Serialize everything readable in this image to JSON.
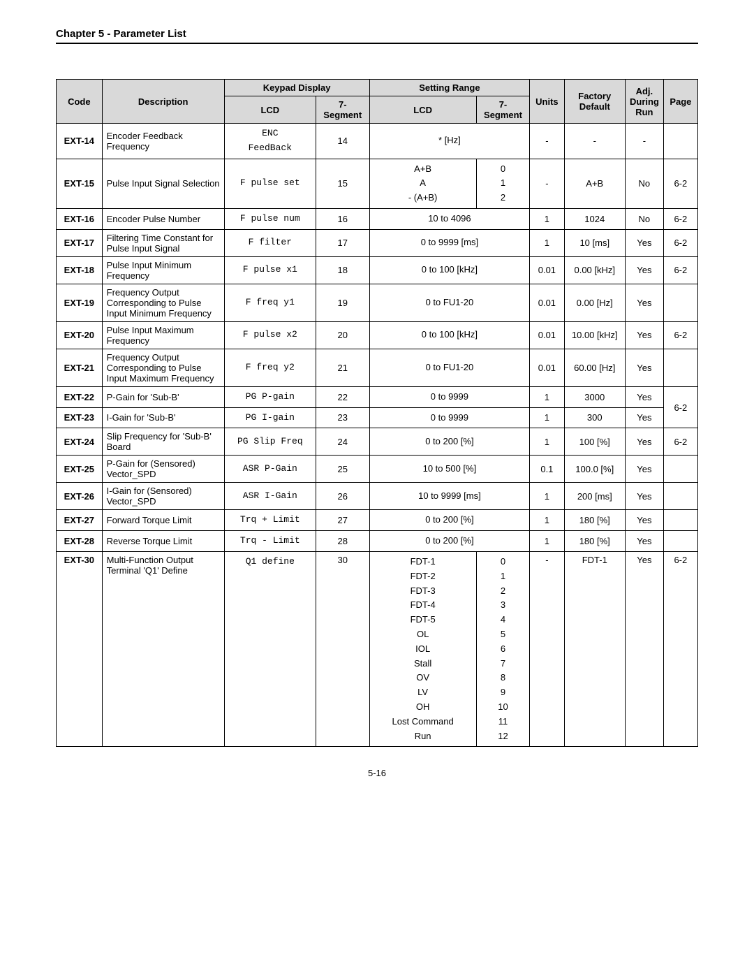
{
  "chapterTitle": "Chapter 5 - Parameter List",
  "pageNumber": "5-16",
  "headers": {
    "code": "Code",
    "description": "Description",
    "keypadDisplay": "Keypad Display",
    "lcd": "LCD",
    "seg7": "7-Segment",
    "settingRange": "Setting Range",
    "units": "Units",
    "factoryDefault": "Factory Default",
    "adjDuringRun": "Adj. During Run",
    "page": "Page"
  },
  "rows": [
    {
      "code": "EXT-14",
      "desc": "Encoder Feedback Frequency",
      "lcdLines": [
        "ENC",
        "FeedBack"
      ],
      "seg": "14",
      "setLcdLines": [
        "* [Hz]"
      ],
      "setSegLines": [],
      "setSpan": true,
      "units": "-",
      "def": "-",
      "adj": "-",
      "page": ""
    },
    {
      "code": "EXT-15",
      "desc": "Pulse Input Signal Selection",
      "lcdLines": [
        "F pulse set"
      ],
      "seg": "15",
      "setLcdLines": [
        "A+B",
        "A",
        "- (A+B)"
      ],
      "setSegLines": [
        "0",
        "1",
        "2"
      ],
      "setSpan": false,
      "units": "-",
      "def": "A+B",
      "adj": "No",
      "page": "6-2"
    },
    {
      "code": "EXT-16",
      "desc": "Encoder Pulse Number",
      "lcdLines": [
        "F pulse num"
      ],
      "seg": "16",
      "setLcdLines": [
        "10 to 4096"
      ],
      "setSegLines": [],
      "setSpan": true,
      "units": "1",
      "def": "1024",
      "adj": "No",
      "page": "6-2"
    },
    {
      "code": "EXT-17",
      "desc": "Filtering Time Constant for Pulse Input Signal",
      "lcdLines": [
        "F filter"
      ],
      "seg": "17",
      "setLcdLines": [
        "0 to 9999 [ms]"
      ],
      "setSegLines": [],
      "setSpan": true,
      "units": "1",
      "def": "10 [ms]",
      "adj": "Yes",
      "page": "6-2"
    },
    {
      "code": "EXT-18",
      "desc": "Pulse Input Minimum Frequency",
      "lcdLines": [
        "F pulse x1"
      ],
      "seg": "18",
      "setLcdLines": [
        "0 to 100 [kHz]"
      ],
      "setSegLines": [],
      "setSpan": true,
      "units": "0.01",
      "def": "0.00 [kHz]",
      "adj": "Yes",
      "page": "6-2"
    },
    {
      "code": "EXT-19",
      "desc": "Frequency Output Corresponding to Pulse Input Minimum Frequency",
      "lcdLines": [
        "F freq y1"
      ],
      "seg": "19",
      "setLcdLines": [
        "0 to FU1-20"
      ],
      "setSegLines": [],
      "setSpan": true,
      "units": "0.01",
      "def": "0.00 [Hz]",
      "adj": "Yes",
      "page": ""
    },
    {
      "code": "EXT-20",
      "desc": "Pulse Input Maximum Frequency",
      "lcdLines": [
        "F pulse x2"
      ],
      "seg": "20",
      "setLcdLines": [
        "0 to 100 [kHz]"
      ],
      "setSegLines": [],
      "setSpan": true,
      "units": "0.01",
      "def": "10.00 [kHz]",
      "adj": "Yes",
      "page": "6-2"
    },
    {
      "code": "EXT-21",
      "desc": "Frequency Output Corresponding to Pulse Input Maximum Frequency",
      "lcdLines": [
        "F freq y2"
      ],
      "seg": "21",
      "setLcdLines": [
        "0 to FU1-20"
      ],
      "setSegLines": [],
      "setSpan": true,
      "units": "0.01",
      "def": "60.00 [Hz]",
      "adj": "Yes",
      "page": ""
    },
    {
      "code": "EXT-22",
      "desc": "P-Gain for 'Sub-B'",
      "lcdLines": [
        "PG P-gain"
      ],
      "seg": "22",
      "setLcdLines": [
        "0 to 9999"
      ],
      "setSegLines": [],
      "setSpan": true,
      "units": "1",
      "def": "3000",
      "adj": "Yes",
      "pageRowspan": 2,
      "page": "6-2"
    },
    {
      "code": "EXT-23",
      "desc": "I-Gain for 'Sub-B'",
      "lcdLines": [
        "PG I-gain"
      ],
      "seg": "23",
      "setLcdLines": [
        "0 to 9999"
      ],
      "setSegLines": [],
      "setSpan": true,
      "units": "1",
      "def": "300",
      "adj": "Yes",
      "pageSkip": true
    },
    {
      "code": "EXT-24",
      "desc": "Slip Frequency for 'Sub-B' Board",
      "lcdLines": [
        "PG Slip Freq"
      ],
      "seg": "24",
      "setLcdLines": [
        "0 to 200 [%]"
      ],
      "setSegLines": [],
      "setSpan": true,
      "units": "1",
      "def": "100 [%]",
      "adj": "Yes",
      "page": "6-2"
    },
    {
      "code": "EXT-25",
      "desc": "P-Gain for (Sensored) Vector_SPD",
      "lcdLines": [
        "ASR P-Gain"
      ],
      "seg": "25",
      "setLcdLines": [
        "10 to 500 [%]"
      ],
      "setSegLines": [],
      "setSpan": true,
      "units": "0.1",
      "def": "100.0 [%]",
      "adj": "Yes",
      "page": ""
    },
    {
      "code": "EXT-26",
      "desc": "I-Gain for (Sensored) Vector_SPD",
      "lcdLines": [
        "ASR I-Gain"
      ],
      "seg": "26",
      "setLcdLines": [
        "10 to 9999 [ms]"
      ],
      "setSegLines": [],
      "setSpan": true,
      "units": "1",
      "def": "200 [ms]",
      "adj": "Yes",
      "page": ""
    },
    {
      "code": "EXT-27",
      "desc": "Forward Torque Limit",
      "lcdLines": [
        "Trq + Limit"
      ],
      "seg": "27",
      "setLcdLines": [
        "0 to 200 [%]"
      ],
      "setSegLines": [],
      "setSpan": true,
      "units": "1",
      "def": "180 [%]",
      "adj": "Yes",
      "page": ""
    },
    {
      "code": "EXT-28",
      "desc": "Reverse Torque Limit",
      "lcdLines": [
        "Trq - Limit"
      ],
      "seg": "28",
      "setLcdLines": [
        "0 to 200 [%]"
      ],
      "setSegLines": [],
      "setSpan": true,
      "units": "1",
      "def": "180 [%]",
      "adj": "Yes",
      "page": ""
    },
    {
      "code": "EXT-30",
      "desc": "Multi-Function Output Terminal 'Q1' Define",
      "lcdLines": [
        "Q1 define"
      ],
      "seg": "30",
      "setLcdLines": [
        "FDT-1",
        "FDT-2",
        "FDT-3",
        "FDT-4",
        "FDT-5",
        "OL",
        "IOL",
        "Stall",
        "OV",
        "LV",
        "OH",
        "Lost Command",
        "Run"
      ],
      "setSegLines": [
        "0",
        "1",
        "2",
        "3",
        "4",
        "5",
        "6",
        "7",
        "8",
        "9",
        "10",
        "11",
        "12"
      ],
      "setSpan": false,
      "units": "-",
      "def": "FDT-1",
      "adj": "Yes",
      "page": "6-2",
      "valignTop": true
    }
  ]
}
